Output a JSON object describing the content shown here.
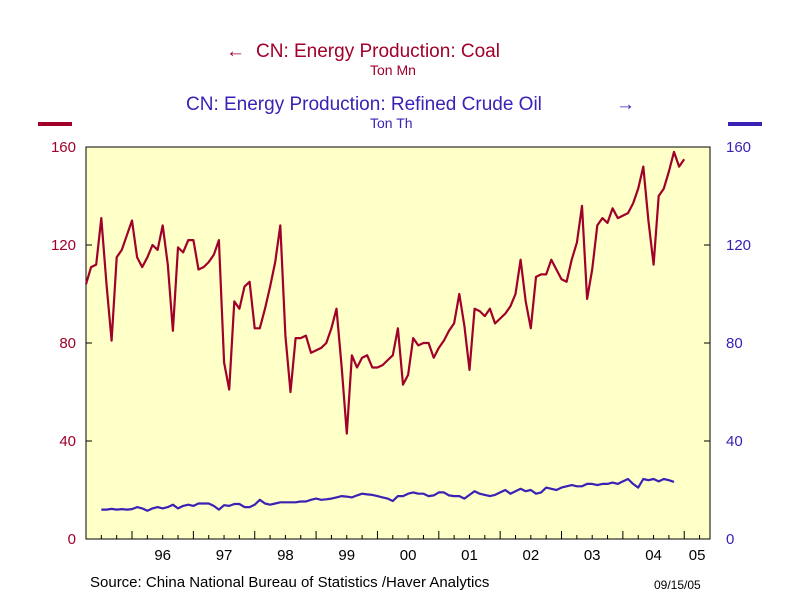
{
  "chart_data": {
    "type": "line",
    "title_left": "CN: Energy Production: Coal",
    "unit_left": "Ton Mn",
    "title_right": "CN: Energy Production: Refined Crude Oil",
    "unit_right": "Ton Th",
    "arrow_left": "←",
    "arrow_right": "→",
    "ylim": [
      0,
      160
    ],
    "yticks": [
      "0",
      "40",
      "80",
      "120",
      "160"
    ],
    "x_range": [
      1995.25,
      2005.42
    ],
    "x_tick_labels": [
      "96",
      "97",
      "98",
      "99",
      "00",
      "01",
      "02",
      "03",
      "04",
      "05"
    ],
    "source": "Source:  China National Bureau of Statistics /Haver Analytics",
    "date_stamp": "09/15/05",
    "colors": {
      "coal": "#a0002a",
      "oil": "#3a22b4",
      "plot_bg": "#ffffc8",
      "left_axis": "#a0002a",
      "right_axis": "#3a22b4"
    },
    "series": [
      {
        "name": "CN: Energy Production: Coal",
        "axis": "left",
        "start": 1995.25,
        "step": 0.0833333,
        "values": [
          104,
          111,
          112,
          131,
          104,
          81,
          115,
          118,
          124,
          130,
          115,
          111,
          115,
          120,
          118,
          128,
          112,
          85,
          119,
          117,
          122,
          122,
          110,
          111,
          113,
          116,
          122,
          72,
          61,
          97,
          94,
          103,
          105,
          86,
          86,
          94,
          103,
          113,
          128,
          83,
          60,
          82,
          82,
          83,
          76,
          77,
          78,
          80,
          86,
          94,
          70,
          43,
          75,
          70,
          74,
          75,
          70,
          70,
          71,
          73,
          75,
          86,
          63,
          67,
          82,
          79,
          80,
          80,
          74,
          78,
          81,
          85,
          88,
          100,
          87,
          69,
          94,
          93,
          91,
          94,
          88,
          90,
          92,
          95,
          100,
          114,
          97,
          86,
          107,
          108,
          108,
          114,
          110,
          106,
          105,
          114,
          121,
          136,
          98,
          110,
          128,
          131,
          129,
          135,
          131,
          132,
          133,
          137,
          143,
          152,
          130,
          112,
          140,
          143,
          150,
          158,
          152,
          155
        ]
      },
      {
        "name": "CN: Energy Production: Refined Crude Oil",
        "axis": "right",
        "start": 1995.5,
        "step": 0.0833333,
        "values": [
          12,
          12,
          12.3,
          12,
          12.2,
          12,
          12.2,
          13,
          12.5,
          11.5,
          12.5,
          13,
          12.5,
          13,
          14,
          12.5,
          13.5,
          14,
          13.5,
          14.5,
          14.5,
          14.5,
          13.5,
          12,
          13.8,
          13.5,
          14.3,
          14.3,
          13,
          13,
          14,
          16,
          14.5,
          14,
          14.5,
          15,
          15,
          15,
          15,
          15.3,
          15.3,
          16,
          16.5,
          16,
          16.2,
          16.5,
          17,
          17.5,
          17.3,
          17,
          17.8,
          18.5,
          18.2,
          18,
          17.5,
          17,
          16.5,
          15.5,
          17.5,
          17.5,
          18.5,
          19,
          18.5,
          18.5,
          17.5,
          17.8,
          19,
          19,
          17.8,
          17.5,
          17.5,
          16.5,
          18,
          19.5,
          18.5,
          18,
          17.5,
          18,
          19,
          20,
          18.5,
          19.5,
          20.5,
          19.5,
          20,
          18.5,
          19,
          21,
          20.5,
          20,
          21,
          21.5,
          22,
          21.5,
          21.5,
          22.5,
          22.5,
          22,
          22.5,
          22.5,
          23,
          22.5,
          23.5,
          24.5,
          22.5,
          21,
          24.5,
          24,
          24.5,
          23.5,
          24.5,
          24,
          23.3
        ]
      }
    ]
  }
}
